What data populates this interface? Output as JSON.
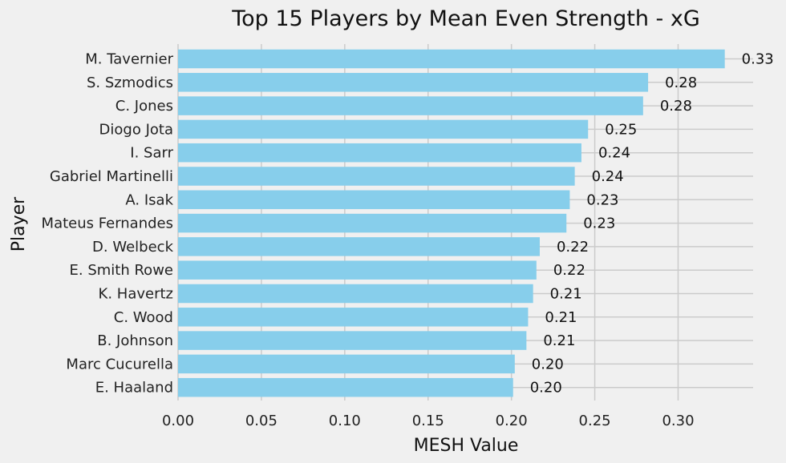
{
  "chart_data": {
    "type": "bar",
    "orientation": "horizontal",
    "title": "Top 15 Players by Mean Even Strength - xG",
    "xlabel": "MESH Value",
    "ylabel": "Player",
    "xlim": [
      0,
      0.345
    ],
    "xticks": [
      0.0,
      0.05,
      0.1,
      0.15,
      0.2,
      0.25,
      0.3
    ],
    "xtick_labels": [
      "0.00",
      "0.05",
      "0.10",
      "0.15",
      "0.20",
      "0.25",
      "0.30"
    ],
    "grid": true,
    "bar_color": "#87ceeb",
    "categories": [
      "M. Tavernier",
      "S. Szmodics",
      "C. Jones",
      "Diogo Jota",
      "I. Sarr",
      "Gabriel Martinelli",
      "A. Isak",
      "Mateus Fernandes",
      "D. Welbeck",
      "E. Smith Rowe",
      "K. Havertz",
      "C. Wood",
      "B. Johnson",
      "Marc Cucurella",
      "E. Haaland"
    ],
    "values": [
      0.328,
      0.282,
      0.279,
      0.246,
      0.242,
      0.238,
      0.235,
      0.233,
      0.217,
      0.215,
      0.213,
      0.21,
      0.209,
      0.202,
      0.201
    ],
    "value_labels": [
      "0.33",
      "0.28",
      "0.28",
      "0.25",
      "0.24",
      "0.24",
      "0.23",
      "0.23",
      "0.22",
      "0.22",
      "0.21",
      "0.21",
      "0.21",
      "0.20",
      "0.20"
    ]
  }
}
